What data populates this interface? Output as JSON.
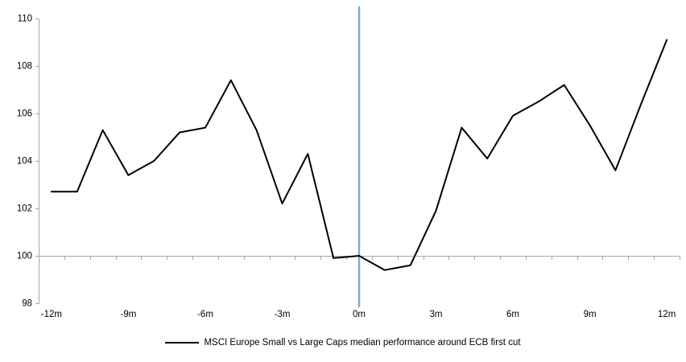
{
  "chart_data": {
    "type": "line",
    "title": "",
    "x": [
      -12,
      -11,
      -10,
      -9,
      -8,
      -7,
      -6,
      -5,
      -4,
      -3,
      -2,
      -1,
      0,
      1,
      2,
      3,
      4,
      5,
      6,
      7,
      8,
      9,
      10,
      11,
      12
    ],
    "series": [
      {
        "name": "MSCI Europe Small vs Large Caps median performance around ECB first cut",
        "values": [
          102.7,
          102.7,
          105.3,
          103.4,
          104.0,
          105.2,
          105.4,
          107.4,
          105.3,
          102.2,
          104.3,
          99.9,
          100.0,
          99.4,
          99.6,
          101.9,
          105.4,
          104.1,
          105.9,
          106.5,
          107.2,
          105.5,
          103.6,
          106.4,
          109.1
        ]
      }
    ],
    "x_tick_positions": [
      -12,
      -9,
      -6,
      -3,
      0,
      3,
      6,
      9,
      12
    ],
    "x_tick_labels": [
      "-12m",
      "-9m",
      "-6m",
      "-3m",
      "0m",
      "3m",
      "6m",
      "9m",
      "12m"
    ],
    "y_ticks": [
      98,
      100,
      102,
      104,
      106,
      108,
      110
    ],
    "ylim": [
      98,
      110
    ],
    "xlim": [
      -12.5,
      12.5
    ],
    "xlabel": "",
    "ylabel": "",
    "grid": false,
    "baseline_value": 100,
    "event_line_x": 0,
    "legend_position": "bottom-center",
    "colors": {
      "series": "#000000",
      "event_line": "#85a9d0",
      "axis": "#a6a6a6",
      "text": "#000000"
    }
  }
}
